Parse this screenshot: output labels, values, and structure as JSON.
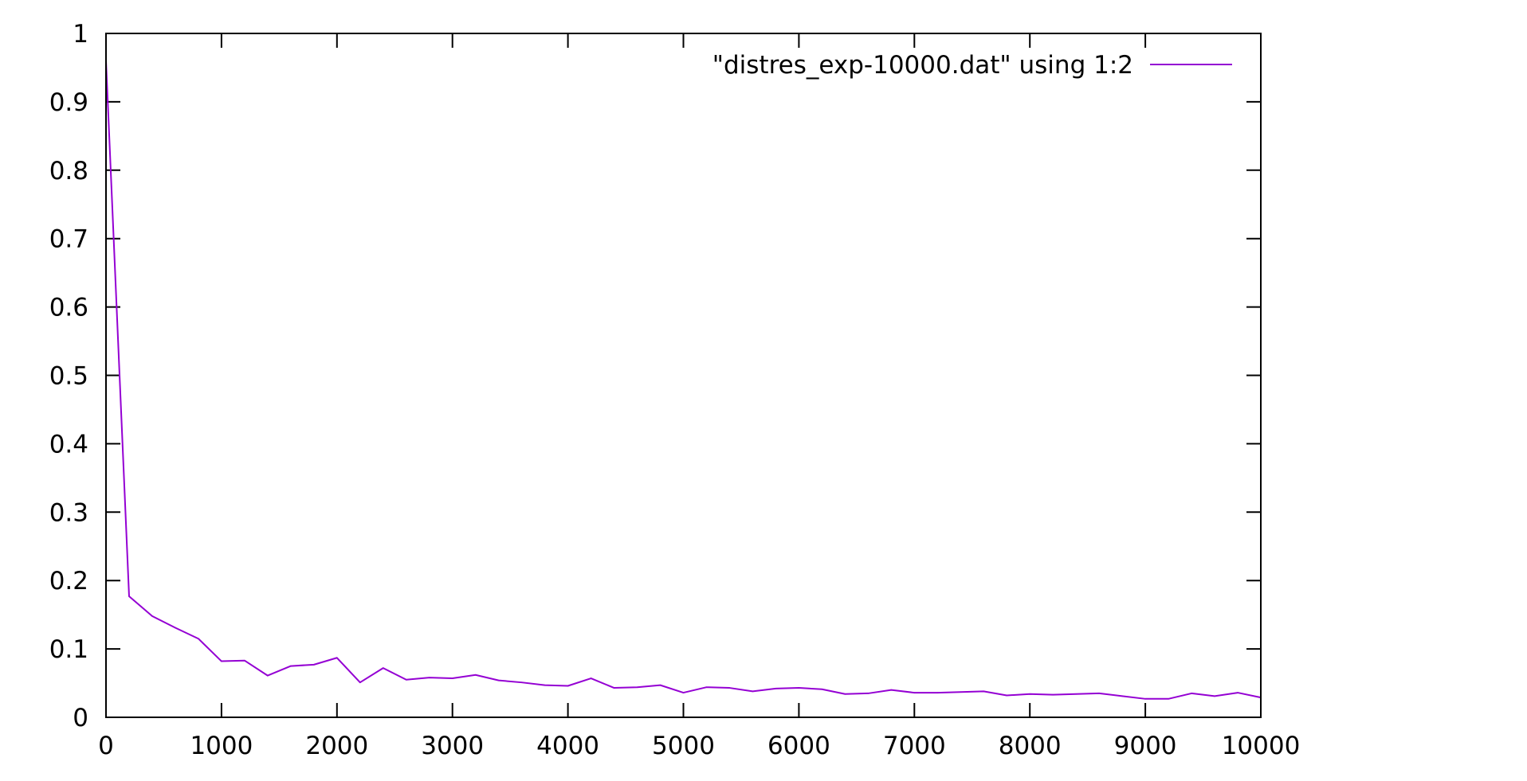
{
  "chart_data": {
    "type": "line",
    "title": "",
    "xlabel": "",
    "ylabel": "",
    "xlim": [
      0,
      10000
    ],
    "ylim": [
      0,
      1
    ],
    "grid": false,
    "legend_position": "top-right",
    "x_ticks": [
      0,
      1000,
      2000,
      3000,
      4000,
      5000,
      6000,
      7000,
      8000,
      9000,
      10000
    ],
    "x_tick_labels": [
      "0",
      "1000",
      "2000",
      "3000",
      "4000",
      "5000",
      "6000",
      "7000",
      "8000",
      "9000",
      "10000"
    ],
    "y_ticks": [
      0,
      0.1,
      0.2,
      0.3,
      0.4,
      0.5,
      0.6,
      0.7,
      0.8,
      0.9,
      1
    ],
    "y_tick_labels": [
      "0",
      "0.1",
      "0.2",
      "0.3",
      "0.4",
      "0.5",
      "0.6",
      "0.7",
      "0.8",
      "0.9",
      "1"
    ],
    "series": [
      {
        "name": "\"distres_exp-10000.dat\" using 1:2",
        "color": "#9400d3",
        "x": [
          0,
          200,
          400,
          600,
          800,
          1000,
          1200,
          1400,
          1600,
          1800,
          2000,
          2200,
          2400,
          2600,
          2800,
          3000,
          3200,
          3400,
          3600,
          3800,
          4000,
          4200,
          4400,
          4600,
          4800,
          5000,
          5200,
          5400,
          5600,
          5800,
          6000,
          6200,
          6400,
          6600,
          6800,
          7000,
          7200,
          7400,
          7600,
          7800,
          8000,
          8200,
          8400,
          8600,
          8800,
          9000,
          9200,
          9400,
          9600,
          9800,
          10000
        ],
        "y": [
          0.96,
          0.177,
          0.148,
          0.131,
          0.115,
          0.082,
          0.083,
          0.061,
          0.075,
          0.077,
          0.087,
          0.051,
          0.072,
          0.055,
          0.058,
          0.057,
          0.062,
          0.054,
          0.051,
          0.047,
          0.046,
          0.057,
          0.043,
          0.044,
          0.047,
          0.036,
          0.044,
          0.043,
          0.038,
          0.042,
          0.043,
          0.041,
          0.034,
          0.035,
          0.04,
          0.036,
          0.036,
          0.037,
          0.038,
          0.032,
          0.034,
          0.033,
          0.034,
          0.035,
          0.031,
          0.027,
          0.027,
          0.035,
          0.031,
          0.036,
          0.029
        ]
      }
    ]
  }
}
